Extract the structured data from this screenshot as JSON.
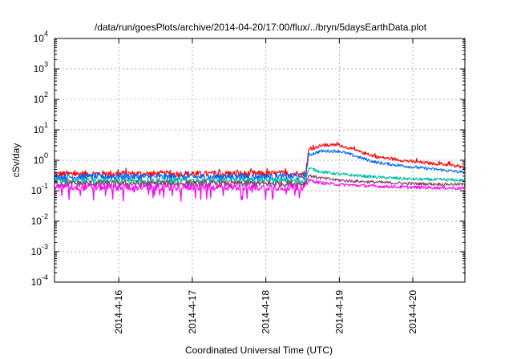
{
  "chart_data": {
    "type": "line",
    "title": "/data/run/goesPlots/archive/2014-04-20/17:00/flux/../bryn/5daysEarthData.plot",
    "xlabel": "Coordinated Universal Time (UTC)",
    "ylabel": "cSv/day",
    "yscale": "log",
    "ylim": [
      0.0001,
      10000
    ],
    "xlim": [
      "2014-04-15T03:00",
      "2014-04-20T17:00"
    ],
    "yticks": [
      {
        "value": 0.0001,
        "base": "10",
        "exp": "-4"
      },
      {
        "value": 0.001,
        "base": "10",
        "exp": "-3"
      },
      {
        "value": 0.01,
        "base": "10",
        "exp": "-2"
      },
      {
        "value": 0.1,
        "base": "10",
        "exp": "-1"
      },
      {
        "value": 1,
        "base": "10",
        "exp": "0"
      },
      {
        "value": 10,
        "base": "10",
        "exp": "1"
      },
      {
        "value": 100,
        "base": "10",
        "exp": "2"
      },
      {
        "value": 1000,
        "base": "10",
        "exp": "3"
      },
      {
        "value": 10000,
        "base": "10",
        "exp": "4"
      }
    ],
    "xticks": [
      {
        "value": "2014-04-16T00:00",
        "label": "2014-4-16"
      },
      {
        "value": "2014-04-17T00:00",
        "label": "2014-4-17"
      },
      {
        "value": "2014-04-18T00:00",
        "label": "2014-4-18"
      },
      {
        "value": "2014-04-19T00:00",
        "label": "2014-4-19"
      },
      {
        "value": "2014-04-20T00:00",
        "label": "2014-4-20"
      }
    ],
    "grid": true,
    "series": [
      {
        "color": "#ff0000",
        "x": [
          "2014-04-15T03:00",
          "2014-04-16T00:00",
          "2014-04-17T00:00",
          "2014-04-18T00:00",
          "2014-04-18T13:00",
          "2014-04-18T14:00",
          "2014-04-18T18:00",
          "2014-04-19T00:00",
          "2014-04-19T06:00",
          "2014-04-19T12:00",
          "2014-04-20T00:00",
          "2014-04-20T12:00",
          "2014-04-20T17:00"
        ],
        "y": [
          0.35,
          0.36,
          0.35,
          0.36,
          0.36,
          2.2,
          3.0,
          3.2,
          2.0,
          1.3,
          0.9,
          0.7,
          0.55
        ]
      },
      {
        "color": "#0066ff",
        "x": [
          "2014-04-15T03:00",
          "2014-04-16T00:00",
          "2014-04-17T00:00",
          "2014-04-18T00:00",
          "2014-04-18T13:00",
          "2014-04-18T14:00",
          "2014-04-18T18:00",
          "2014-04-19T00:00",
          "2014-04-19T06:00",
          "2014-04-19T12:00",
          "2014-04-20T00:00",
          "2014-04-20T12:00",
          "2014-04-20T17:00"
        ],
        "y": [
          0.28,
          0.29,
          0.28,
          0.29,
          0.29,
          1.5,
          2.0,
          2.0,
          1.3,
          0.85,
          0.6,
          0.45,
          0.4
        ]
      },
      {
        "color": "#00c0a0",
        "x": [
          "2014-04-15T03:00",
          "2014-04-16T00:00",
          "2014-04-17T00:00",
          "2014-04-18T00:00",
          "2014-04-18T13:00",
          "2014-04-18T14:00",
          "2014-04-18T18:00",
          "2014-04-19T00:00",
          "2014-04-19T12:00",
          "2014-04-20T00:00",
          "2014-04-20T17:00"
        ],
        "y": [
          0.21,
          0.21,
          0.21,
          0.21,
          0.21,
          0.55,
          0.42,
          0.35,
          0.28,
          0.24,
          0.22
        ]
      },
      {
        "color": "#904070",
        "x": [
          "2014-04-15T03:00",
          "2014-04-16T00:00",
          "2014-04-17T00:00",
          "2014-04-18T00:00",
          "2014-04-18T13:00",
          "2014-04-18T14:00",
          "2014-04-18T18:00",
          "2014-04-19T00:00",
          "2014-04-19T12:00",
          "2014-04-20T00:00",
          "2014-04-20T17:00"
        ],
        "y": [
          0.17,
          0.17,
          0.17,
          0.17,
          0.17,
          0.32,
          0.26,
          0.22,
          0.19,
          0.17,
          0.16
        ]
      },
      {
        "color": "#ff00ff",
        "x": [
          "2014-04-15T03:00",
          "2014-04-16T00:00",
          "2014-04-17T00:00",
          "2014-04-18T00:00",
          "2014-04-18T13:00",
          "2014-04-18T14:00",
          "2014-04-18T18:00",
          "2014-04-19T00:00",
          "2014-04-19T12:00",
          "2014-04-20T00:00",
          "2014-04-20T17:00"
        ],
        "y": [
          0.13,
          0.13,
          0.13,
          0.13,
          0.13,
          0.22,
          0.18,
          0.16,
          0.14,
          0.13,
          0.12
        ]
      }
    ]
  }
}
